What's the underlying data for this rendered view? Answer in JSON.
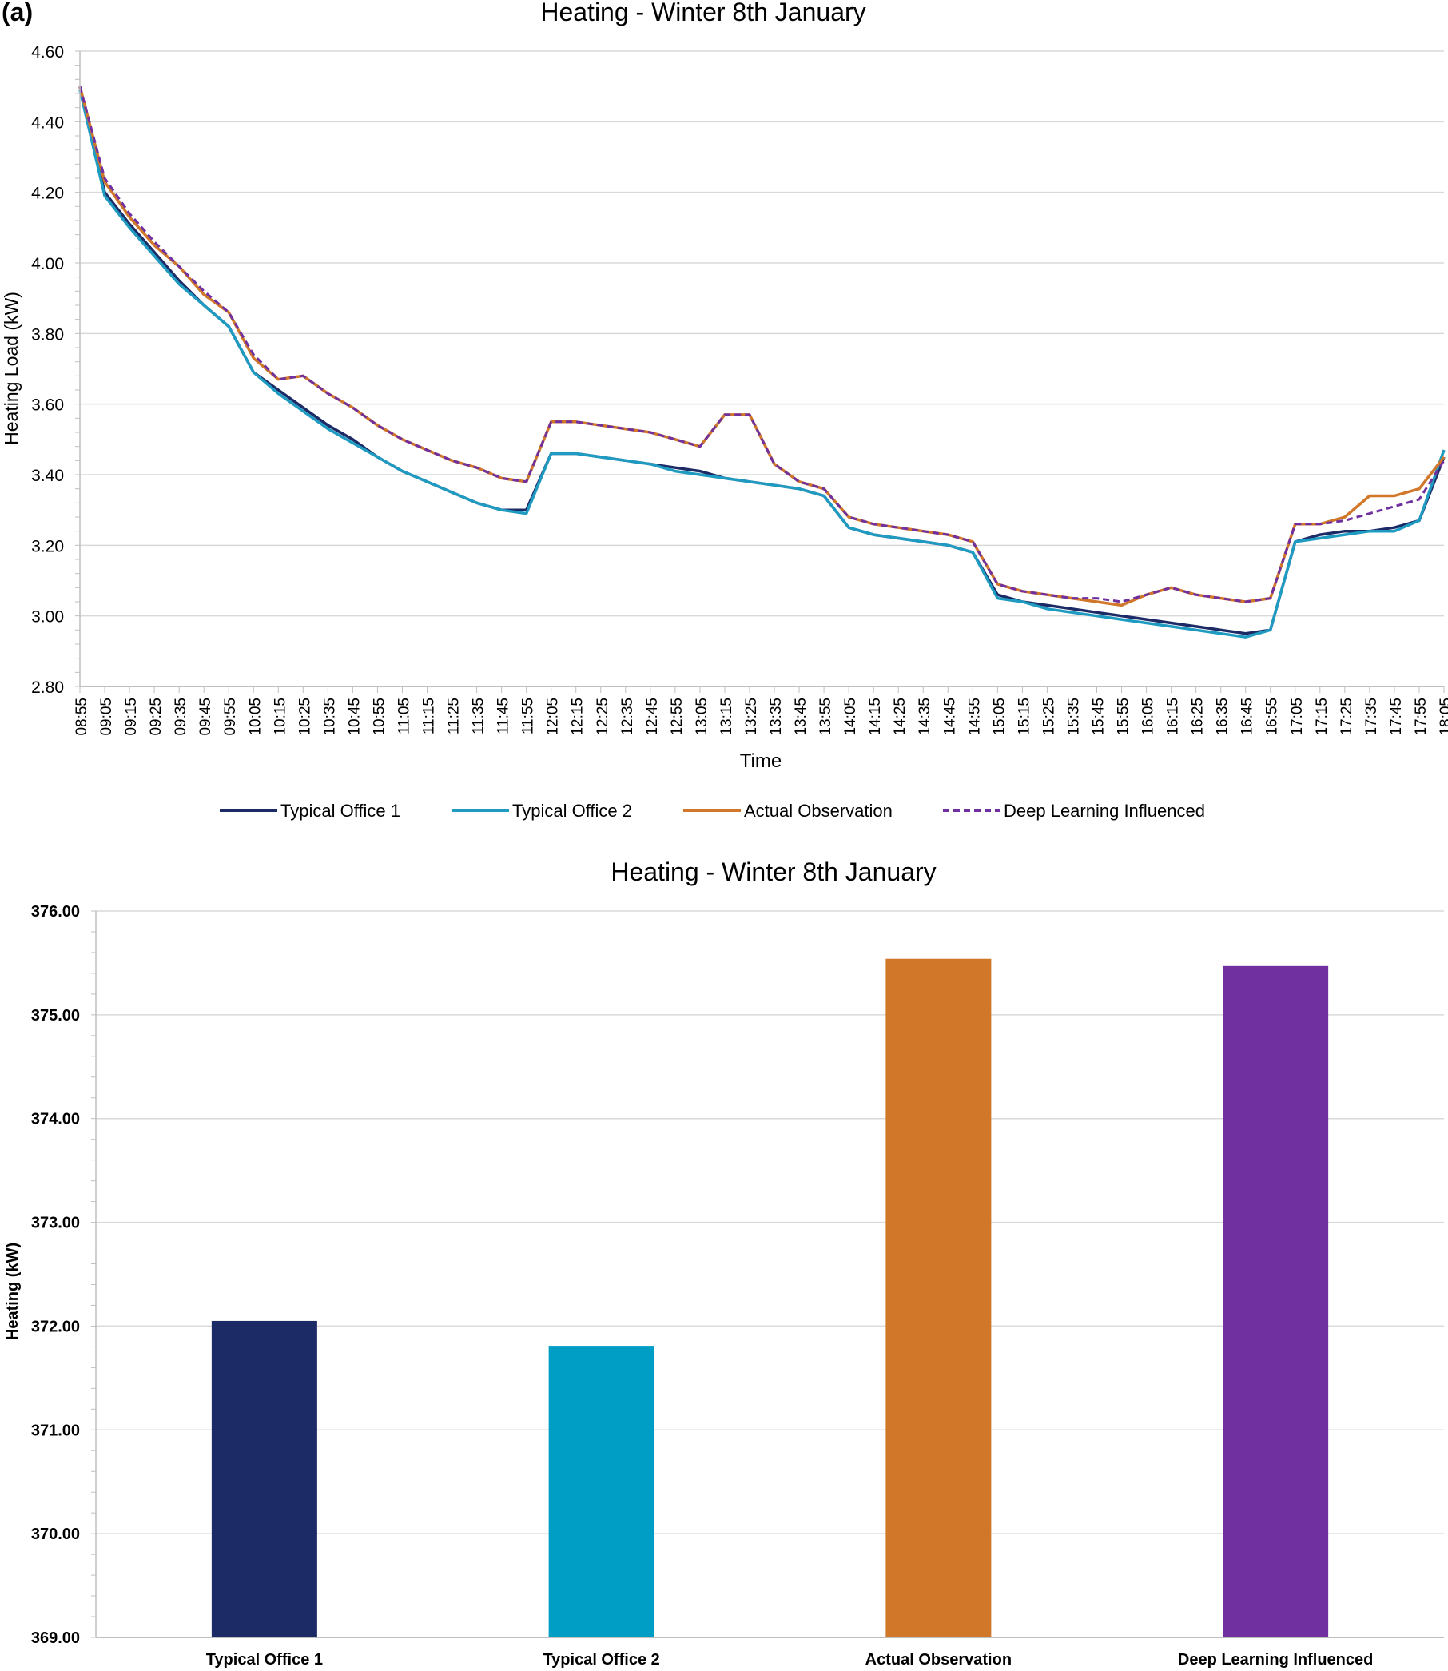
{
  "chart_data": [
    {
      "type": "line",
      "panel_label": "(a)",
      "title": "Heating - Winter 8th January",
      "xlabel": "Time",
      "ylabel": "Heating Load (kW)",
      "ylim": [
        2.8,
        4.6
      ],
      "yticks": [
        "2.80",
        "3.00",
        "3.20",
        "3.40",
        "3.60",
        "3.80",
        "4.00",
        "4.20",
        "4.40",
        "4.60"
      ],
      "grid": true,
      "legend": "bottom",
      "categories": [
        "08:55",
        "09:05",
        "09:15",
        "09:25",
        "09:35",
        "09:45",
        "09:55",
        "10:05",
        "10:15",
        "10:25",
        "10:35",
        "10:45",
        "10:55",
        "11:05",
        "11:15",
        "11:25",
        "11:35",
        "11:45",
        "11:55",
        "12:05",
        "12:15",
        "12:25",
        "12:35",
        "12:45",
        "12:55",
        "13:05",
        "13:15",
        "13:25",
        "13:35",
        "13:45",
        "13:55",
        "14:05",
        "14:15",
        "14:25",
        "14:35",
        "14:45",
        "14:55",
        "15:05",
        "15:15",
        "15:25",
        "15:35",
        "15:45",
        "15:55",
        "16:05",
        "16:15",
        "16:25",
        "16:35",
        "16:45",
        "16:55",
        "17:05",
        "17:15",
        "17:25",
        "17:35",
        "17:45",
        "17:55",
        "18:05"
      ],
      "series": [
        {
          "name": "Typical Office 1",
          "color": "#1c2a66",
          "dash": false,
          "values": [
            4.5,
            4.2,
            4.11,
            4.03,
            3.95,
            3.88,
            3.82,
            3.69,
            3.64,
            3.59,
            3.54,
            3.5,
            3.45,
            3.41,
            3.38,
            3.35,
            3.32,
            3.3,
            3.3,
            3.46,
            3.46,
            3.45,
            3.44,
            3.43,
            3.42,
            3.41,
            3.39,
            3.38,
            3.37,
            3.36,
            3.34,
            3.25,
            3.23,
            3.22,
            3.21,
            3.2,
            3.18,
            3.06,
            3.04,
            3.03,
            3.02,
            3.01,
            3.0,
            2.99,
            2.98,
            2.97,
            2.96,
            2.95,
            2.96,
            3.21,
            3.23,
            3.24,
            3.24,
            3.25,
            3.27,
            3.45
          ]
        },
        {
          "name": "Typical Office 2",
          "color": "#1f9bc2",
          "dash": false,
          "values": [
            4.49,
            4.19,
            4.1,
            4.02,
            3.94,
            3.88,
            3.82,
            3.69,
            3.63,
            3.58,
            3.53,
            3.49,
            3.45,
            3.41,
            3.38,
            3.35,
            3.32,
            3.3,
            3.29,
            3.46,
            3.46,
            3.45,
            3.44,
            3.43,
            3.41,
            3.4,
            3.39,
            3.38,
            3.37,
            3.36,
            3.34,
            3.25,
            3.23,
            3.22,
            3.21,
            3.2,
            3.18,
            3.05,
            3.04,
            3.02,
            3.01,
            3.0,
            2.99,
            2.98,
            2.97,
            2.96,
            2.95,
            2.94,
            2.96,
            3.21,
            3.22,
            3.23,
            3.24,
            3.24,
            3.27,
            3.47
          ]
        },
        {
          "name": "Actual Observation",
          "color": "#d0772a",
          "dash": false,
          "values": [
            4.5,
            4.23,
            4.13,
            4.05,
            3.99,
            3.91,
            3.86,
            3.73,
            3.67,
            3.68,
            3.63,
            3.59,
            3.54,
            3.5,
            3.47,
            3.44,
            3.42,
            3.39,
            3.38,
            3.55,
            3.55,
            3.54,
            3.53,
            3.52,
            3.5,
            3.48,
            3.57,
            3.57,
            3.43,
            3.38,
            3.36,
            3.28,
            3.26,
            3.25,
            3.24,
            3.23,
            3.21,
            3.09,
            3.07,
            3.06,
            3.05,
            3.04,
            3.03,
            3.06,
            3.08,
            3.06,
            3.05,
            3.04,
            3.05,
            3.26,
            3.26,
            3.28,
            3.34,
            3.34,
            3.36,
            3.45
          ]
        },
        {
          "name": "Deep Learning Influenced",
          "color": "#7030a0",
          "dash": true,
          "values": [
            4.5,
            4.24,
            4.14,
            4.06,
            3.99,
            3.92,
            3.86,
            3.74,
            3.67,
            3.68,
            3.63,
            3.59,
            3.54,
            3.5,
            3.47,
            3.44,
            3.42,
            3.39,
            3.38,
            3.55,
            3.55,
            3.54,
            3.53,
            3.52,
            3.5,
            3.48,
            3.57,
            3.57,
            3.43,
            3.38,
            3.36,
            3.28,
            3.26,
            3.25,
            3.24,
            3.23,
            3.21,
            3.09,
            3.07,
            3.06,
            3.05,
            3.05,
            3.04,
            3.06,
            3.08,
            3.06,
            3.05,
            3.04,
            3.05,
            3.26,
            3.26,
            3.27,
            3.29,
            3.31,
            3.33,
            3.44
          ]
        }
      ]
    },
    {
      "type": "bar",
      "title": "Heating - Winter 8th January",
      "xlabel": "",
      "ylabel": "Heating (kW)",
      "ylim": [
        369.0,
        376.0
      ],
      "yticks": [
        "369.00",
        "370.00",
        "371.00",
        "372.00",
        "373.00",
        "374.00",
        "375.00",
        "376.00"
      ],
      "grid": true,
      "categories": [
        "Typical Office 1",
        "Typical Office 2",
        "Actual Observation",
        "Deep Learning Influenced"
      ],
      "values": [
        372.05,
        371.81,
        375.54,
        375.47
      ],
      "colors": [
        "#1c2a66",
        "#009dc4",
        "#d0772a",
        "#7030a0"
      ]
    }
  ]
}
